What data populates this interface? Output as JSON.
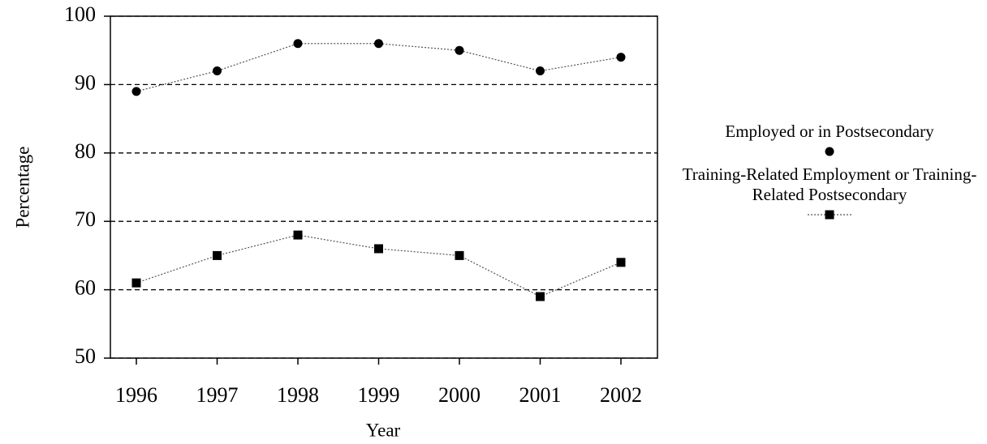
{
  "chart_data": {
    "type": "line",
    "x_label": "Year",
    "y_label": "Percentage",
    "categories": [
      "1996",
      "1997",
      "1998",
      "1999",
      "2000",
      "2001",
      "2002"
    ],
    "series": [
      {
        "name": "Employed or in Postsecondary",
        "color": "#000000",
        "marker": "circle",
        "values": [
          89,
          92,
          96,
          96,
          95,
          92,
          94
        ]
      },
      {
        "name": "Training-Related Employment or Training-Related Postsecondary",
        "color": "#000000",
        "marker": "square",
        "values": [
          61,
          65,
          68,
          66,
          65,
          59,
          64
        ]
      }
    ],
    "ylim": [
      50,
      100
    ],
    "yticks": [
      50,
      60,
      70,
      80,
      90,
      100
    ],
    "grid": true,
    "legend": "right"
  }
}
